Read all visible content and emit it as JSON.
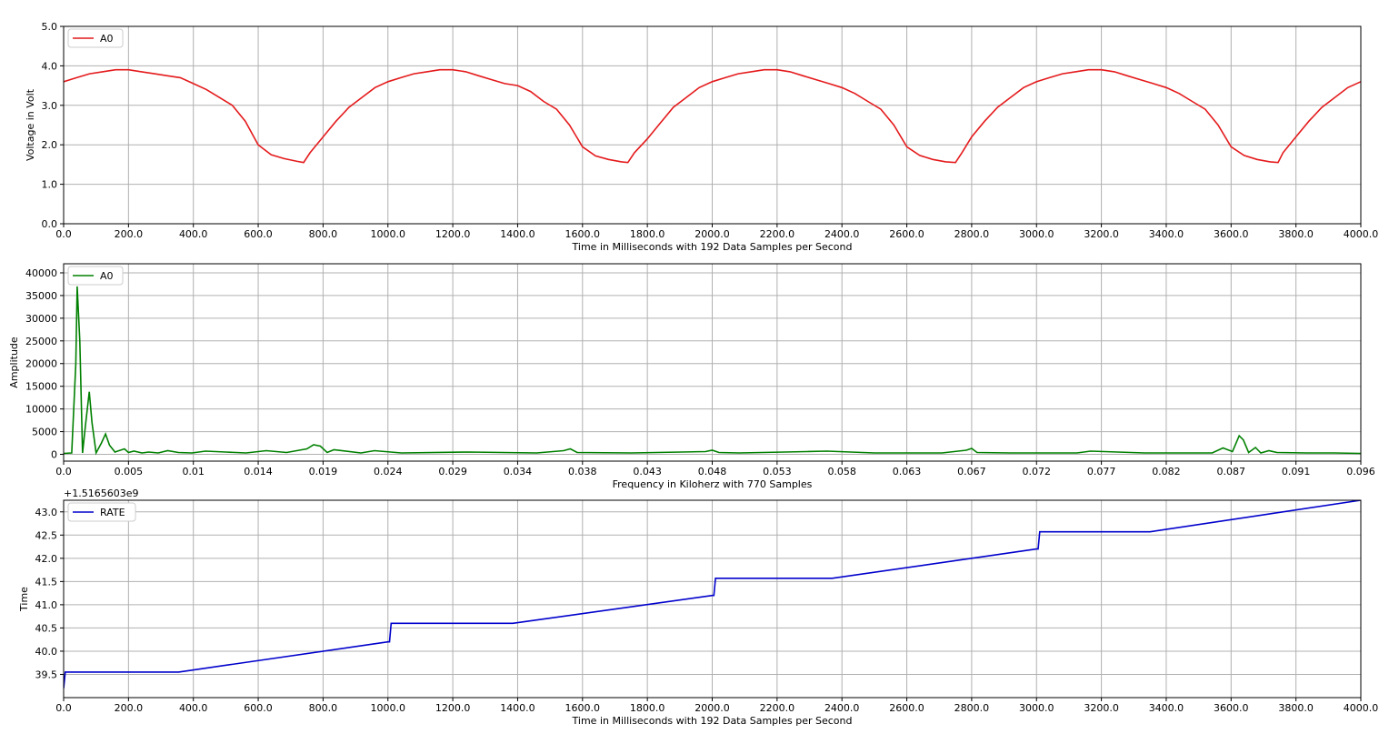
{
  "chart_data": [
    {
      "type": "line",
      "xlabel": "Time in Milliseconds with 192 Data Samples per Second",
      "ylabel": "Voltage in Volt",
      "xlim": [
        0,
        4000
      ],
      "ylim": [
        0,
        5
      ],
      "grid": true,
      "legend_position": "top-left",
      "xticks": [
        "0.0",
        "200.0",
        "400.0",
        "600.0",
        "800.0",
        "1000.0",
        "1200.0",
        "1400.0",
        "1600.0",
        "1800.0",
        "2000.0",
        "2200.0",
        "2400.0",
        "2600.0",
        "2800.0",
        "3000.0",
        "3200.0",
        "3400.0",
        "3600.0",
        "3800.0",
        "4000.0"
      ],
      "yticks": [
        "0.0",
        "1.0",
        "2.0",
        "3.0",
        "4.0",
        "5.0"
      ],
      "series": [
        {
          "name": "A0",
          "color": "#e41a1c",
          "x": [
            0,
            40,
            80,
            120,
            160,
            200,
            240,
            280,
            320,
            360,
            400,
            440,
            480,
            520,
            560,
            600,
            640,
            680,
            720,
            740,
            760,
            800,
            840,
            880,
            920,
            960,
            1000,
            1040,
            1080,
            1120,
            1160,
            1200,
            1240,
            1280,
            1320,
            1360,
            1400,
            1440,
            1480,
            1520,
            1560,
            1600,
            1640,
            1680,
            1720,
            1740,
            1760,
            1800,
            1840,
            1880,
            1920,
            1960,
            2000,
            2040,
            2080,
            2120,
            2160,
            2200,
            2240,
            2280,
            2320,
            2360,
            2400,
            2440,
            2480,
            2520,
            2560,
            2600,
            2640,
            2680,
            2720,
            2750,
            2770,
            2800,
            2840,
            2880,
            2920,
            2960,
            3000,
            3040,
            3080,
            3120,
            3160,
            3200,
            3240,
            3280,
            3320,
            3360,
            3400,
            3440,
            3480,
            3520,
            3560,
            3600,
            3640,
            3680,
            3720,
            3745,
            3760,
            3800,
            3840,
            3880,
            3920,
            3960,
            4000
          ],
          "y": [
            3.6,
            3.7,
            3.8,
            3.85,
            3.9,
            3.9,
            3.85,
            3.8,
            3.75,
            3.7,
            3.55,
            3.4,
            3.2,
            3.0,
            2.6,
            2.0,
            1.75,
            1.65,
            1.58,
            1.55,
            1.8,
            2.2,
            2.6,
            2.95,
            3.2,
            3.45,
            3.6,
            3.7,
            3.8,
            3.85,
            3.9,
            3.9,
            3.85,
            3.75,
            3.65,
            3.55,
            3.5,
            3.35,
            3.1,
            2.9,
            2.5,
            1.95,
            1.72,
            1.63,
            1.57,
            1.55,
            1.8,
            2.15,
            2.55,
            2.95,
            3.2,
            3.45,
            3.6,
            3.7,
            3.8,
            3.85,
            3.9,
            3.9,
            3.85,
            3.75,
            3.65,
            3.55,
            3.45,
            3.3,
            3.1,
            2.9,
            2.5,
            1.95,
            1.73,
            1.63,
            1.57,
            1.55,
            1.8,
            2.2,
            2.6,
            2.95,
            3.2,
            3.45,
            3.6,
            3.7,
            3.8,
            3.85,
            3.9,
            3.9,
            3.85,
            3.75,
            3.65,
            3.55,
            3.45,
            3.3,
            3.1,
            2.9,
            2.5,
            1.95,
            1.73,
            1.63,
            1.57,
            1.55,
            1.8,
            2.2,
            2.6,
            2.95,
            3.2,
            3.45,
            3.6
          ]
        }
      ]
    },
    {
      "type": "line",
      "xlabel": "Frequency in Kiloherz with 770 Samples",
      "ylabel": "Amplitude",
      "xlim": [
        0,
        0.096
      ],
      "ylim": [
        -1500,
        42000
      ],
      "grid": true,
      "legend_position": "top-left",
      "xticks": [
        "0.0",
        "0.005",
        "0.01",
        "0.014",
        "0.019",
        "0.024",
        "0.029",
        "0.034",
        "0.038",
        "0.043",
        "0.048",
        "0.053",
        "0.058",
        "0.063",
        "0.067",
        "0.072",
        "0.077",
        "0.082",
        "0.087",
        "0.091",
        "0.096"
      ],
      "xtick_values": [
        0,
        0.0048,
        0.0096,
        0.0144,
        0.0192,
        0.024,
        0.0288,
        0.0336,
        0.0384,
        0.0432,
        0.048,
        0.0528,
        0.0576,
        0.0624,
        0.0672,
        0.072,
        0.0768,
        0.0816,
        0.0864,
        0.0912,
        0.096
      ],
      "yticks": [
        0,
        5000,
        10000,
        15000,
        20000,
        25000,
        30000,
        35000,
        40000
      ],
      "series": [
        {
          "name": "A0",
          "color": "#008000",
          "x": [
            0,
            0.0006,
            0.0009,
            0.001,
            0.0012,
            0.0014,
            0.0016,
            0.0019,
            0.0021,
            0.0024,
            0.0028,
            0.0031,
            0.0034,
            0.0038,
            0.0041,
            0.0045,
            0.0048,
            0.0052,
            0.0058,
            0.0063,
            0.007,
            0.0077,
            0.0085,
            0.0095,
            0.0105,
            0.012,
            0.0135,
            0.015,
            0.0165,
            0.018,
            0.0185,
            0.019,
            0.0195,
            0.02,
            0.022,
            0.023,
            0.025,
            0.03,
            0.035,
            0.037,
            0.0375,
            0.038,
            0.042,
            0.0475,
            0.048,
            0.0485,
            0.05,
            0.055,
            0.0565,
            0.06,
            0.065,
            0.0668,
            0.0672,
            0.0676,
            0.07,
            0.075,
            0.076,
            0.08,
            0.085,
            0.0858,
            0.0865,
            0.087,
            0.0873,
            0.0877,
            0.0882,
            0.0886,
            0.0892,
            0.0898,
            0.092,
            0.094,
            0.096
          ],
          "y": [
            200,
            300,
            20000,
            37000,
            25000,
            300,
            6000,
            13800,
            7000,
            300,
            2500,
            4500,
            2000,
            500,
            800,
            1200,
            400,
            700,
            300,
            500,
            300,
            800,
            400,
            300,
            700,
            500,
            300,
            800,
            400,
            1200,
            2100,
            1800,
            400,
            1000,
            300,
            800,
            300,
            500,
            300,
            800,
            1200,
            400,
            300,
            600,
            900,
            400,
            300,
            600,
            700,
            300,
            300,
            900,
            1300,
            400,
            300,
            300,
            700,
            300,
            300,
            1400,
            600,
            4100,
            3200,
            400,
            1500,
            300,
            800,
            400,
            300,
            300,
            200
          ]
        }
      ]
    },
    {
      "type": "line",
      "xlabel": "Time in Milliseconds with 192 Data Samples per Second",
      "ylabel": "Time",
      "offset_label": "+1.5165603e9",
      "xlim": [
        0,
        4000
      ],
      "ylim": [
        39.0,
        43.25
      ],
      "grid": true,
      "legend_position": "top-left",
      "xticks": [
        "0.0",
        "200.0",
        "400.0",
        "600.0",
        "800.0",
        "1000.0",
        "1200.0",
        "1400.0",
        "1600.0",
        "1800.0",
        "2000.0",
        "2200.0",
        "2400.0",
        "2600.0",
        "2800.0",
        "3000.0",
        "3200.0",
        "3400.0",
        "3600.0",
        "3800.0",
        "4000.0"
      ],
      "yticks": [
        "39.5",
        "40.0",
        "40.5",
        "41.0",
        "41.5",
        "42.0",
        "42.5",
        "43.0"
      ],
      "ytick_values": [
        39.5,
        40.0,
        40.5,
        41.0,
        41.5,
        42.0,
        42.5,
        43.0
      ],
      "series": [
        {
          "name": "RATE",
          "color": "#0000cc",
          "x": [
            0,
            5,
            10,
            355,
            1000,
            1005,
            1010,
            1385,
            2000,
            2005,
            2010,
            2370,
            3000,
            3005,
            3010,
            3350,
            4000
          ],
          "y": [
            39.2,
            39.55,
            39.55,
            39.55,
            40.2,
            40.2,
            40.6,
            40.6,
            41.2,
            41.2,
            41.57,
            41.57,
            42.2,
            42.2,
            42.57,
            42.57,
            43.25
          ]
        }
      ]
    }
  ]
}
